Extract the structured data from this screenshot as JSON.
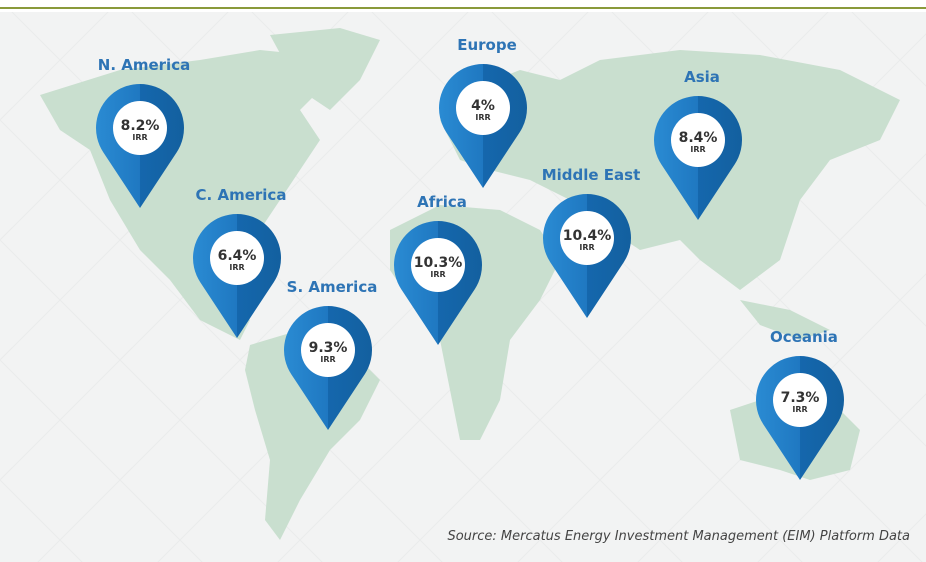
{
  "regions": [
    {
      "name": "N. America",
      "irr": "8.2%"
    },
    {
      "name": "C. America",
      "irr": "6.4%"
    },
    {
      "name": "S. America",
      "irr": "9.3%"
    },
    {
      "name": "Europe",
      "irr": "4%"
    },
    {
      "name": "Africa",
      "irr": "10.3%"
    },
    {
      "name": "Middle East",
      "irr": "10.4%"
    },
    {
      "name": "Asia",
      "irr": "8.4%"
    },
    {
      "name": "Oceania",
      "irr": "7.3%"
    }
  ],
  "metric_label": "IRR",
  "source": "Source: Mercatus Energy Investment Management (EIM) Platform Data"
}
